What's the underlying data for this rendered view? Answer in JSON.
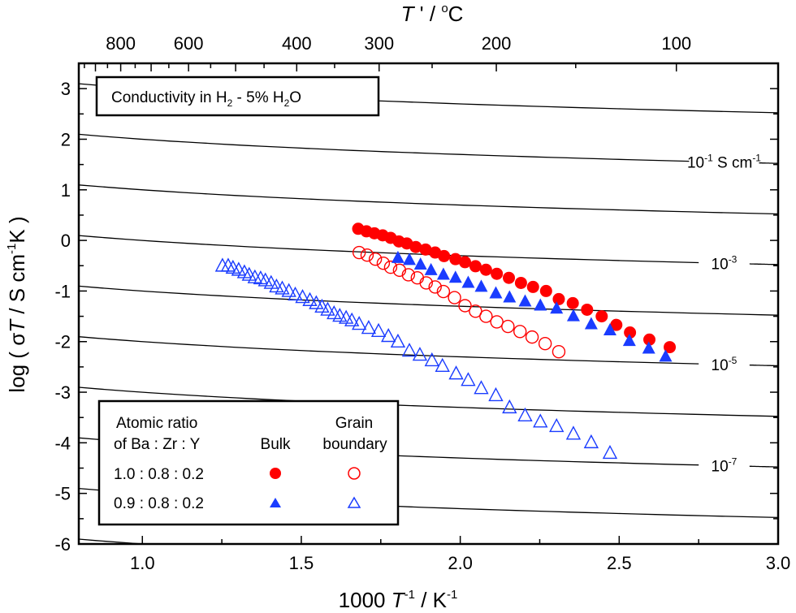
{
  "chart_data": {
    "type": "scatter",
    "title": "",
    "annotation_box": {
      "prefix": "Conductivity in H",
      "sub1": "2",
      "middle": " - 5% H",
      "sub2": "2",
      "suffix": "O"
    },
    "xlabel": {
      "main": "1000 ",
      "italic": "T",
      "sup1": "-1",
      "mid": " / K",
      "sup2": "-1"
    },
    "ylabel": {
      "pre": "log ( σ",
      "italic": "T",
      "mid": " / S cm",
      "sup": "-1",
      "post": "K )"
    },
    "top_xlabel": {
      "italic": "T",
      "mid": " ' / ",
      "sup": "o",
      "post": "C"
    },
    "xlim": [
      0.8,
      3.0
    ],
    "ylim": [
      -6,
      3.5
    ],
    "x_ticks": [
      1.0,
      1.5,
      2.0,
      2.5,
      3.0
    ],
    "x_tick_labels": [
      "1.0",
      "1.5",
      "2.0",
      "2.5",
      "3.0"
    ],
    "y_ticks": [
      -6,
      -5,
      -4,
      -3,
      -2,
      -1,
      0,
      1,
      2,
      3
    ],
    "y_tick_labels": [
      "-6",
      "-5",
      "-4",
      "-3",
      "-2",
      "-1",
      "0",
      "1",
      "2",
      "3"
    ],
    "top_axis_major_celsius": [
      900,
      800,
      700,
      600,
      500,
      400,
      300,
      200,
      100
    ],
    "top_axis_minor_celsius": [
      950,
      850,
      750,
      650,
      550,
      450,
      350,
      250,
      150
    ],
    "top_axis_labels": [
      {
        "celsius": 800,
        "label": "800"
      },
      {
        "celsius": 600,
        "label": "600"
      },
      {
        "celsius": 400,
        "label": "400"
      },
      {
        "celsius": 300,
        "label": "300"
      },
      {
        "celsius": 200,
        "label": "200"
      },
      {
        "celsius": 100,
        "label": "100"
      }
    ],
    "iso_conductivity_lines": {
      "log_sigma": [
        0,
        -1,
        -2,
        -3,
        -4,
        -5,
        -6,
        -7,
        -8,
        -9
      ],
      "labels": [
        {
          "log_sigma": -1,
          "base": "10",
          "exp": "-1",
          "unit": " S cm",
          "unit_exp": "-1"
        },
        {
          "log_sigma": -3,
          "base": "10",
          "exp": "-3",
          "unit": "",
          "unit_exp": ""
        },
        {
          "log_sigma": -5,
          "base": "10",
          "exp": "-5",
          "unit": "",
          "unit_exp": ""
        },
        {
          "log_sigma": -7,
          "base": "10",
          "exp": "-7",
          "unit": "",
          "unit_exp": ""
        }
      ]
    },
    "legend": {
      "position": "bottom-left",
      "header_col1": [
        "Atomic ratio",
        "of Ba : Zr : Y"
      ],
      "header_bulk": "Bulk",
      "header_gb": [
        "Grain",
        "boundary"
      ],
      "rows": [
        "1.0 : 0.8 : 0.2",
        "0.9 : 0.8 : 0.2"
      ]
    },
    "series": [
      {
        "name": "1.0 : 0.8 : 0.2 Bulk",
        "marker": "circle",
        "filled": true,
        "color": "#ff0000",
        "x": [
          1.679,
          1.705,
          1.73,
          1.756,
          1.781,
          1.807,
          1.832,
          1.86,
          1.891,
          1.921,
          1.949,
          1.985,
          2.015,
          2.048,
          2.081,
          2.115,
          2.153,
          2.191,
          2.229,
          2.27,
          2.31,
          2.354,
          2.399,
          2.445,
          2.491,
          2.534,
          2.595,
          2.659
        ],
        "y": [
          0.23,
          0.18,
          0.14,
          0.1,
          0.05,
          -0.02,
          -0.06,
          -0.13,
          -0.18,
          -0.24,
          -0.31,
          -0.37,
          -0.43,
          -0.51,
          -0.58,
          -0.66,
          -0.74,
          -0.84,
          -0.92,
          -1.0,
          -1.16,
          -1.24,
          -1.37,
          -1.5,
          -1.67,
          -1.82,
          -1.96,
          -2.11
        ]
      },
      {
        "name": "1.0 : 0.8 : 0.2 Grain boundary",
        "marker": "circle",
        "filled": false,
        "color": "#ff0000",
        "x": [
          1.682,
          1.707,
          1.733,
          1.758,
          1.781,
          1.809,
          1.837,
          1.865,
          1.893,
          1.921,
          1.947,
          1.982,
          2.015,
          2.048,
          2.081,
          2.115,
          2.15,
          2.188,
          2.226,
          2.267,
          2.31
        ],
        "y": [
          -0.24,
          -0.29,
          -0.37,
          -0.45,
          -0.53,
          -0.59,
          -0.68,
          -0.74,
          -0.84,
          -0.92,
          -1.01,
          -1.13,
          -1.29,
          -1.4,
          -1.5,
          -1.61,
          -1.7,
          -1.8,
          -1.91,
          -2.04,
          -2.2
        ]
      },
      {
        "name": "0.9 : 0.8 : 0.2 Bulk",
        "marker": "triangle",
        "filled": true,
        "color": "#1a3cff",
        "x": [
          1.804,
          1.84,
          1.875,
          1.908,
          1.947,
          1.985,
          2.025,
          2.066,
          2.112,
          2.155,
          2.204,
          2.252,
          2.303,
          2.356,
          2.412,
          2.471,
          2.532,
          2.593,
          2.646
        ],
        "y": [
          -0.35,
          -0.39,
          -0.48,
          -0.59,
          -0.68,
          -0.74,
          -0.84,
          -0.92,
          -1.05,
          -1.13,
          -1.21,
          -1.29,
          -1.35,
          -1.5,
          -1.66,
          -1.78,
          -1.99,
          -2.14,
          -2.3
        ]
      },
      {
        "name": "0.9 : 0.8 : 0.2 Grain boundary",
        "marker": "triangle",
        "filled": false,
        "color": "#1a3cff",
        "x": [
          1.252,
          1.27,
          1.285,
          1.303,
          1.321,
          1.336,
          1.354,
          1.372,
          1.387,
          1.405,
          1.422,
          1.44,
          1.461,
          1.481,
          1.504,
          1.527,
          1.547,
          1.565,
          1.583,
          1.603,
          1.621,
          1.641,
          1.659,
          1.682,
          1.712,
          1.743,
          1.774,
          1.804,
          1.84,
          1.873,
          1.911,
          1.944,
          1.987,
          2.025,
          2.066,
          2.112,
          2.155,
          2.204,
          2.252,
          2.303,
          2.356,
          2.412,
          2.471
        ],
        "y": [
          -0.51,
          -0.51,
          -0.55,
          -0.59,
          -0.64,
          -0.69,
          -0.74,
          -0.76,
          -0.8,
          -0.85,
          -0.92,
          -0.96,
          -1.01,
          -1.08,
          -1.13,
          -1.19,
          -1.25,
          -1.32,
          -1.38,
          -1.45,
          -1.5,
          -1.54,
          -1.59,
          -1.66,
          -1.74,
          -1.8,
          -1.9,
          -2.01,
          -2.19,
          -2.27,
          -2.38,
          -2.49,
          -2.64,
          -2.77,
          -2.93,
          -3.07,
          -3.31,
          -3.47,
          -3.59,
          -3.68,
          -3.83,
          -4.0,
          -4.21
        ]
      }
    ]
  }
}
